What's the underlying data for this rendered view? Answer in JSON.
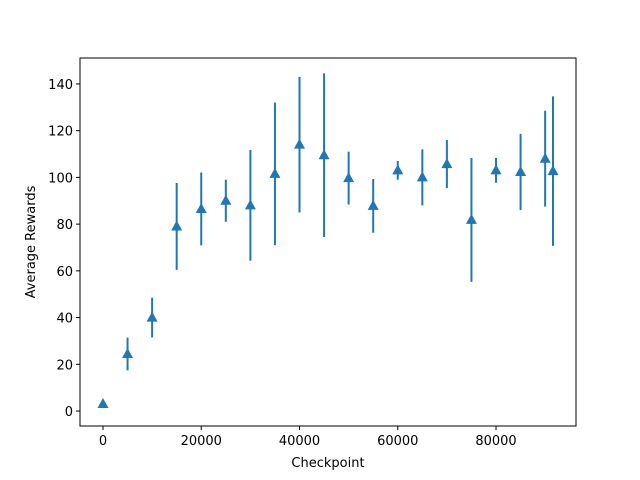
{
  "chart_data": {
    "type": "errorbar",
    "xlabel": "Checkpoint",
    "ylabel": "Average Rewards",
    "x": [
      0,
      5000,
      10000,
      15000,
      20000,
      25000,
      30000,
      35000,
      40000,
      45000,
      50000,
      55000,
      60000,
      65000,
      70000,
      75000,
      80000,
      85000,
      90000,
      91600
    ],
    "values": [
      3,
      24.4,
      40,
      79,
      86.5,
      90,
      88,
      101.5,
      114,
      109.5,
      99.7,
      87.8,
      103,
      100,
      105.7,
      81.8,
      103,
      102.3,
      108,
      102.7
    ],
    "errors": [
      1.5,
      7,
      8.5,
      18.6,
      15.6,
      9,
      23.7,
      30.5,
      29,
      35,
      11.3,
      11.5,
      4,
      12,
      10.3,
      26.5,
      5.3,
      16.3,
      20.5,
      32
    ],
    "color": "#1f77b4",
    "xlim": [
      -4680,
      96280
    ],
    "ylim": [
      -6.4,
      151.1
    ],
    "xticks": [
      0,
      20000,
      40000,
      60000,
      80000
    ],
    "yticks": [
      0,
      20,
      40,
      60,
      80,
      100,
      120,
      140
    ]
  }
}
